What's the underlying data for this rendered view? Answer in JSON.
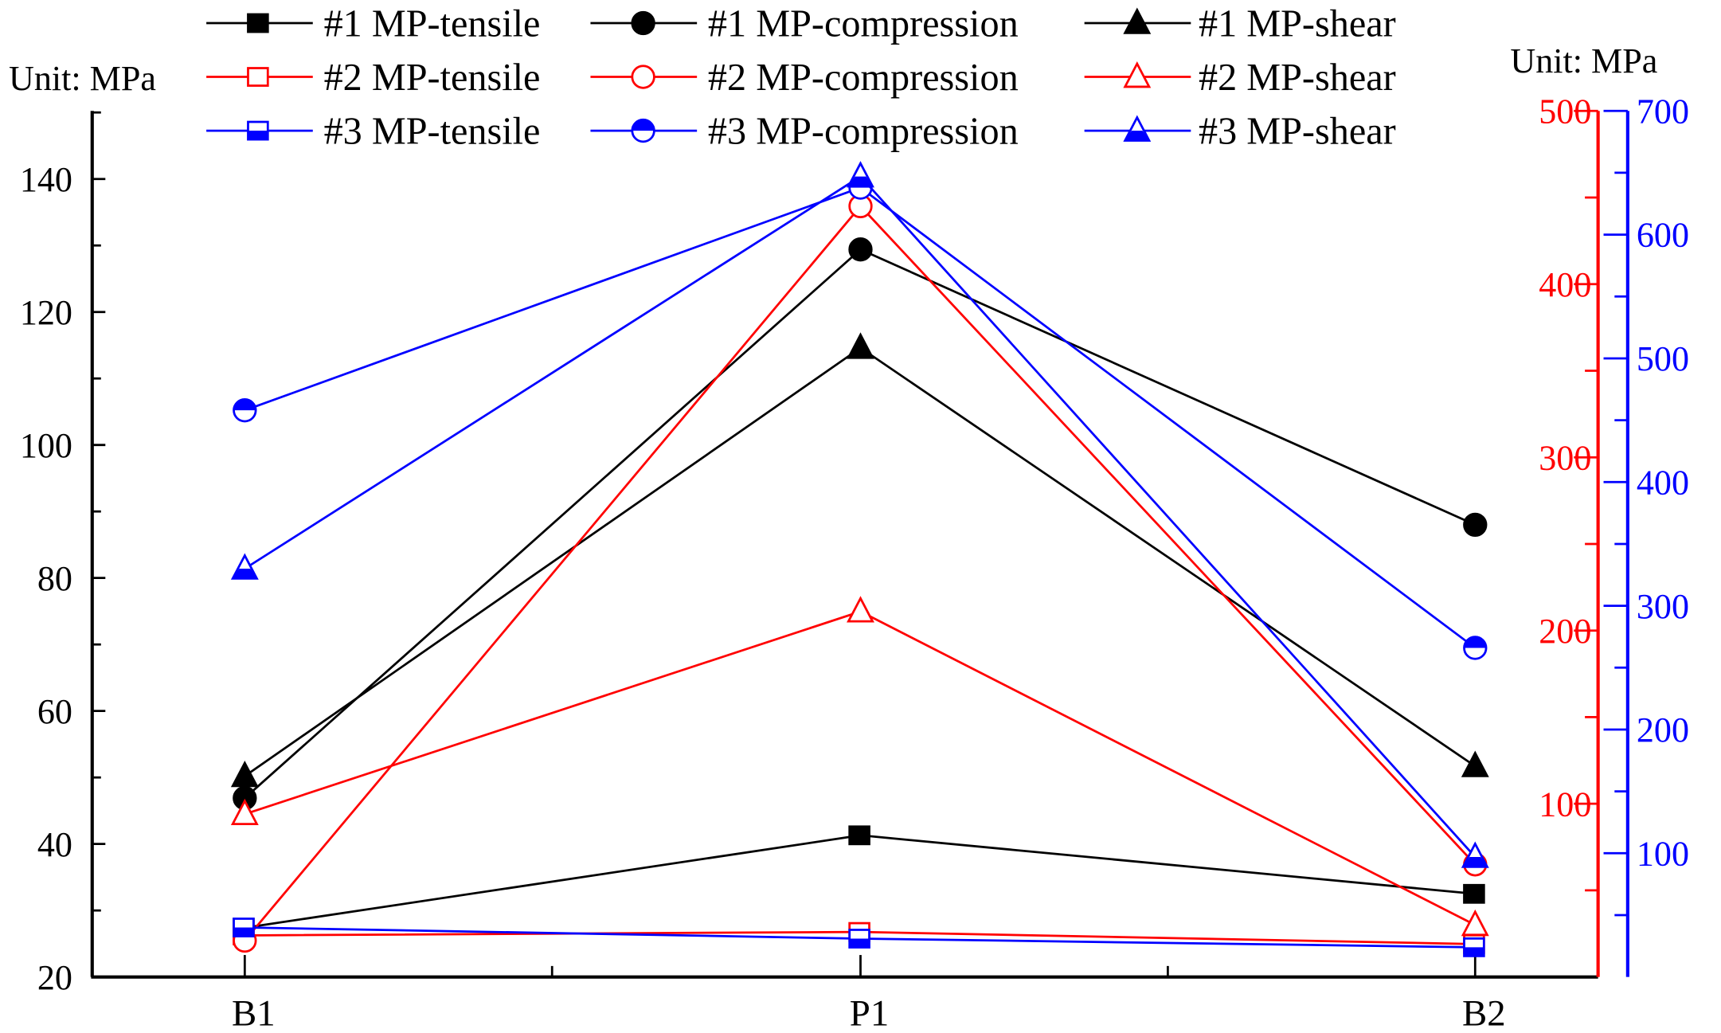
{
  "chart_data": {
    "type": "line",
    "categories": [
      "B1",
      "P1",
      "B2"
    ],
    "left_axis": {
      "label": "Unit: MPa",
      "ylim": [
        20,
        150
      ],
      "ticks": [
        20,
        40,
        60,
        80,
        100,
        120,
        140
      ],
      "color": "#000000"
    },
    "right_axis_red": {
      "label": "Unit: MPa",
      "ylim": [
        0,
        500
      ],
      "ticks": [
        100,
        200,
        300,
        400,
        500
      ],
      "color": "#ff0000"
    },
    "right_axis_blue": {
      "ylim": [
        0,
        700
      ],
      "ticks": [
        100,
        200,
        300,
        400,
        500,
        600,
        700
      ],
      "color": "#0000ff"
    },
    "grid": false,
    "legend_position": "top",
    "series": [
      {
        "name": "#1 MP-tensile",
        "axis": "left",
        "color": "#000000",
        "marker": "square-filled",
        "values": [
          27.4,
          41.3,
          32.5
        ]
      },
      {
        "name": "#1 MP-compression",
        "axis": "left",
        "color": "#000000",
        "marker": "circle-filled",
        "values": [
          46.9,
          129.4,
          88.0
        ]
      },
      {
        "name": "#1 MP-shear",
        "axis": "left",
        "color": "#000000",
        "marker": "triangle-filled",
        "values": [
          50.2,
          114.6,
          51.7
        ]
      },
      {
        "name": "#2 MP-tensile",
        "axis": "red",
        "color": "#ff0000",
        "marker": "square-open",
        "values": [
          24,
          26,
          19
        ]
      },
      {
        "name": "#2 MP-compression",
        "axis": "red",
        "color": "#ff0000",
        "marker": "circle-open",
        "values": [
          21,
          445,
          65
        ]
      },
      {
        "name": "#2 MP-shear",
        "axis": "red",
        "color": "#ff0000",
        "marker": "triangle-open",
        "values": [
          94,
          211,
          30
        ]
      },
      {
        "name": "#3 MP-tensile",
        "axis": "blue",
        "color": "#0000ff",
        "marker": "square-half",
        "values": [
          40,
          31,
          24
        ]
      },
      {
        "name": "#3 MP-compression",
        "axis": "blue",
        "color": "#0000ff",
        "marker": "circle-half",
        "values": [
          458,
          638,
          266
        ]
      },
      {
        "name": "#3 MP-shear",
        "axis": "blue",
        "color": "#0000ff",
        "marker": "triangle-half",
        "values": [
          330,
          647,
          97
        ]
      }
    ]
  }
}
